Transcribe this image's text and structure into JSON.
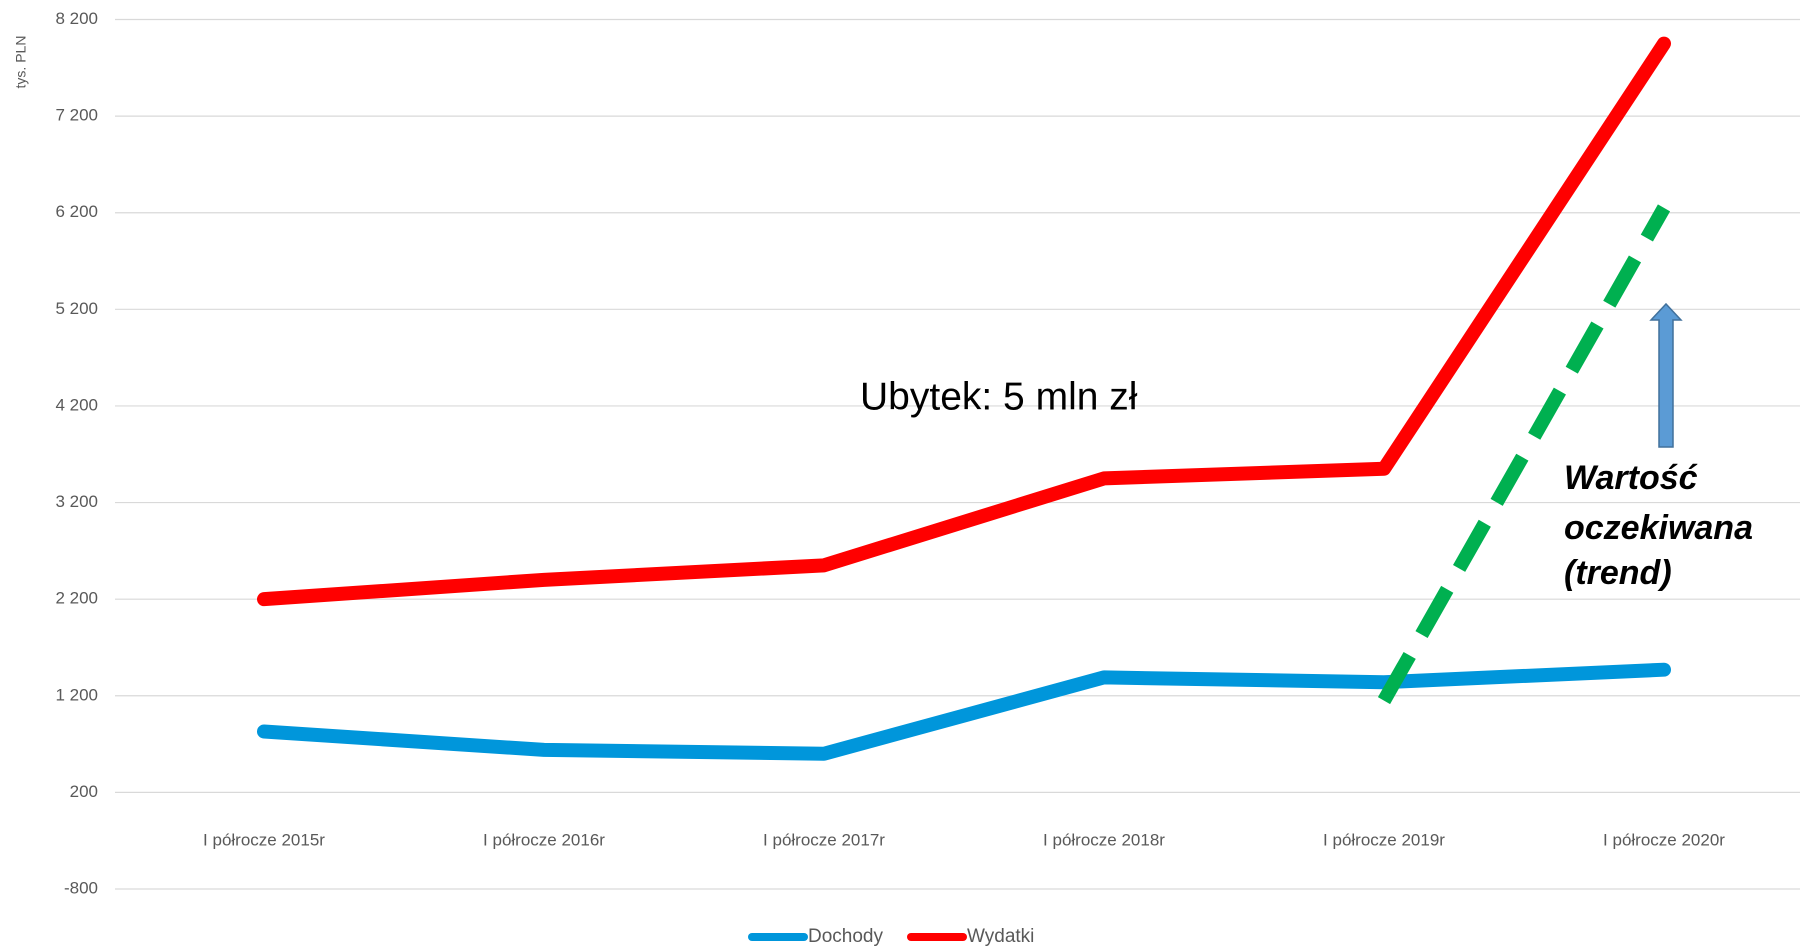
{
  "chart_data": {
    "type": "line",
    "y_label": "tys. PLN",
    "categories": [
      "I półrocze 2015r",
      "I półrocze 2016r",
      "I półrocze 2017r",
      "I półrocze 2018r",
      "I półrocze 2019r",
      "I półrocze 2020r"
    ],
    "series": [
      {
        "name": "Dochody",
        "color": "#0096db",
        "values": [
          830,
          640,
          600,
          1390,
          1340,
          1470
        ]
      },
      {
        "name": "Wydatki",
        "color": "#ff0000",
        "values": [
          2200,
          2400,
          2550,
          3450,
          3550,
          7950
        ]
      }
    ],
    "trend_line": {
      "color": "#00b050",
      "dashed": true,
      "values": [
        null,
        null,
        null,
        null,
        1150,
        6250
      ]
    },
    "ylim": [
      -800,
      8200
    ],
    "yticks": [
      -800,
      200,
      {
        "value": 1200,
        "label": "1 200"
      },
      {
        "value": 2200,
        "label": "2 200"
      },
      {
        "value": 3200,
        "label": "3 200"
      },
      {
        "value": 4200,
        "label": "4 200"
      },
      {
        "value": 5200,
        "label": "5 200"
      },
      {
        "value": 6200,
        "label": "6 200"
      },
      {
        "value": 7200,
        "label": "7 200"
      },
      {
        "value": 8200,
        "label": "8 200"
      }
    ],
    "grid": true,
    "legend": "bottom",
    "annotations": [
      "Ubytek: 5 mln zł"
    ],
    "trend_label": [
      "Wartość",
      "oczekiwana",
      "(trend)"
    ]
  }
}
